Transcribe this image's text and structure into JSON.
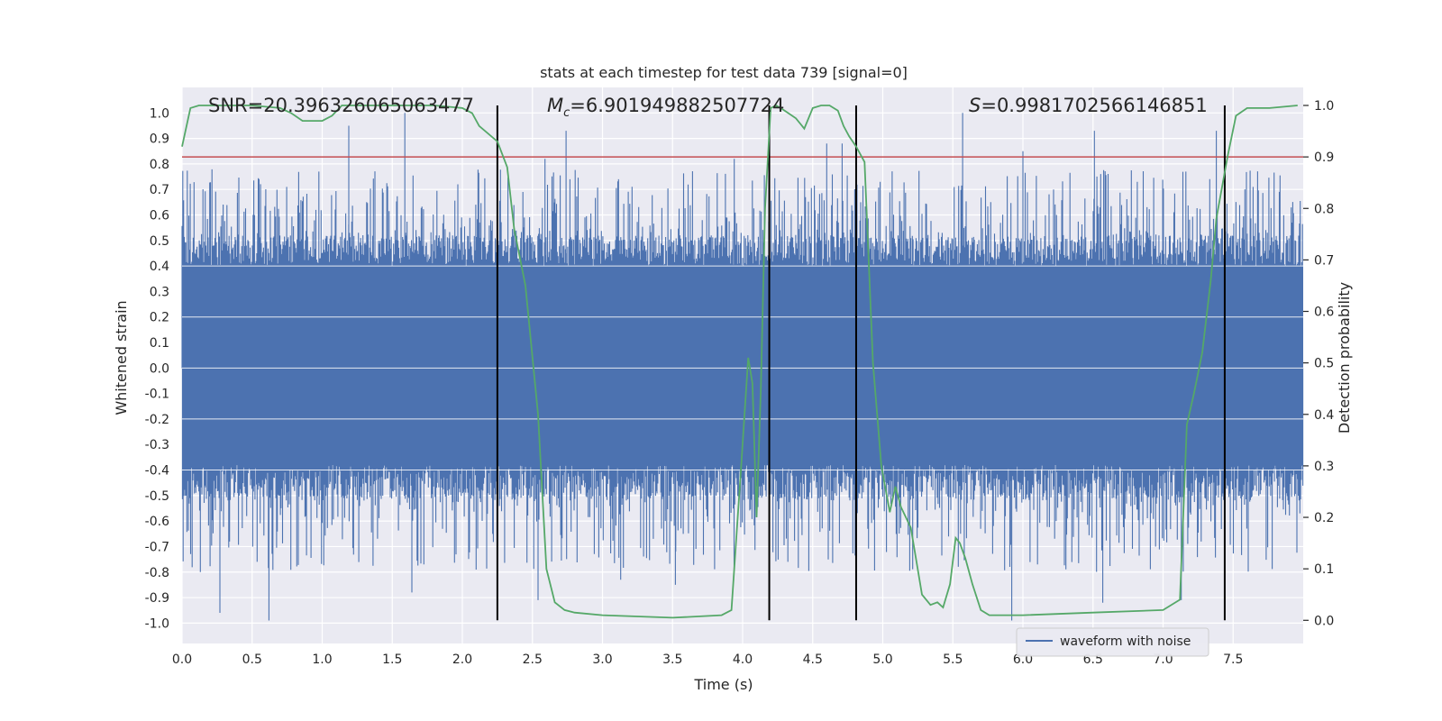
{
  "chart_data": {
    "type": "line",
    "title": "stats at each timestep for test data 739 [signal=0]",
    "xlabel": "Time (s)",
    "ylabel": "Whitened strain",
    "y2label": "Detection probability",
    "xlim": [
      0.0,
      8.0
    ],
    "ylim": [
      -1.08,
      1.1
    ],
    "y2lim": [
      -0.045,
      1.035
    ],
    "xticks": [
      "0.0",
      "0.5",
      "1.0",
      "1.5",
      "2.0",
      "2.5",
      "3.0",
      "3.5",
      "4.0",
      "4.5",
      "5.0",
      "5.5",
      "6.0",
      "6.5",
      "7.0",
      "7.5"
    ],
    "yticks": [
      "1.0",
      "0.9",
      "0.8",
      "0.7",
      "0.6",
      "0.5",
      "0.4",
      "0.3",
      "0.2",
      "0.1",
      "0.0",
      "-0.1",
      "-0.2",
      "-0.3",
      "-0.4",
      "-0.5",
      "-0.6",
      "-0.7",
      "-0.8",
      "-0.9",
      "-1.0"
    ],
    "y2ticks": [
      "1.0",
      "0.9",
      "0.8",
      "0.7",
      "0.6",
      "0.5",
      "0.4",
      "0.3",
      "0.2",
      "0.1",
      "0.0"
    ],
    "annotations": {
      "snr": "SNR=20.396326065063477",
      "mc_symbol": "M",
      "mc_sub": "c",
      "mc_value": "=6.901949882507724",
      "s_symbol": "S",
      "s_value": "=0.9981702566146851"
    },
    "legend": {
      "label": "waveform with noise",
      "location": "lower-right"
    },
    "threshold": {
      "value": 0.9,
      "axis": "y2",
      "color": "#c44e52"
    },
    "vertical_markers": [
      2.25,
      4.19,
      4.81,
      7.44
    ],
    "waveform": {
      "name": "waveform with noise",
      "color": "#4c72b0",
      "core_band": [
        -0.38,
        0.4
      ],
      "spike_peaks": [
        {
          "x": 0.27,
          "y": -0.96
        },
        {
          "x": 0.62,
          "y": -0.99
        },
        {
          "x": 1.19,
          "y": 0.95
        },
        {
          "x": 1.59,
          "y": 1.0
        },
        {
          "x": 1.64,
          "y": -0.88
        },
        {
          "x": 2.54,
          "y": -0.91
        },
        {
          "x": 2.59,
          "y": 0.82
        },
        {
          "x": 2.74,
          "y": 0.93
        },
        {
          "x": 3.13,
          "y": -0.83
        },
        {
          "x": 3.52,
          "y": -0.85
        },
        {
          "x": 3.94,
          "y": 0.82
        },
        {
          "x": 4.6,
          "y": 0.88
        },
        {
          "x": 4.71,
          "y": 0.88
        },
        {
          "x": 5.57,
          "y": 1.0
        },
        {
          "x": 5.92,
          "y": -0.99
        },
        {
          "x": 6.0,
          "y": 0.85
        },
        {
          "x": 6.51,
          "y": 0.93
        },
        {
          "x": 6.57,
          "y": -0.92
        },
        {
          "x": 7.13,
          "y": -0.91
        },
        {
          "x": 7.38,
          "y": 0.93
        }
      ]
    },
    "probability": {
      "name": "detection probability",
      "color": "#55a868",
      "x": [
        0.0,
        0.06,
        0.12,
        0.18,
        0.3,
        0.5,
        0.7,
        0.78,
        0.86,
        0.92,
        1.0,
        1.07,
        1.14,
        1.2,
        1.4,
        1.6,
        1.8,
        2.0,
        2.07,
        2.12,
        2.25,
        2.32,
        2.37,
        2.45,
        2.54,
        2.6,
        2.66,
        2.73,
        2.8,
        3.0,
        3.5,
        3.85,
        3.92,
        3.99,
        4.04,
        4.07,
        4.1,
        4.13,
        4.16,
        4.2,
        4.24,
        4.3,
        4.38,
        4.44,
        4.5,
        4.56,
        4.62,
        4.68,
        4.72,
        4.76,
        4.81,
        4.87,
        4.93,
        4.99,
        5.05,
        5.09,
        5.13,
        5.2,
        5.28,
        5.34,
        5.39,
        5.43,
        5.48,
        5.52,
        5.55,
        5.59,
        5.64,
        5.7,
        5.76,
        6.0,
        6.5,
        7.0,
        7.12,
        7.17,
        7.22,
        7.28,
        7.34,
        7.38,
        7.46,
        7.52,
        7.6,
        7.68,
        7.76,
        7.96
      ],
      "y": [
        0.92,
        0.995,
        1.0,
        1.0,
        1.0,
        1.0,
        0.995,
        0.985,
        0.97,
        0.97,
        0.97,
        0.98,
        1.0,
        1.0,
        1.0,
        1.0,
        1.0,
        0.995,
        0.985,
        0.96,
        0.93,
        0.88,
        0.76,
        0.65,
        0.4,
        0.1,
        0.035,
        0.02,
        0.015,
        0.01,
        0.005,
        0.01,
        0.02,
        0.3,
        0.51,
        0.46,
        0.2,
        0.45,
        0.8,
        0.995,
        1.0,
        0.99,
        0.975,
        0.955,
        0.995,
        1.0,
        1.0,
        0.99,
        0.96,
        0.94,
        0.92,
        0.89,
        0.5,
        0.3,
        0.21,
        0.26,
        0.22,
        0.18,
        0.05,
        0.03,
        0.035,
        0.025,
        0.07,
        0.16,
        0.15,
        0.12,
        0.07,
        0.02,
        0.01,
        0.01,
        0.015,
        0.02,
        0.04,
        0.38,
        0.44,
        0.52,
        0.66,
        0.78,
        0.9,
        0.98,
        0.995,
        0.995,
        0.995,
        1.0
      ]
    }
  }
}
